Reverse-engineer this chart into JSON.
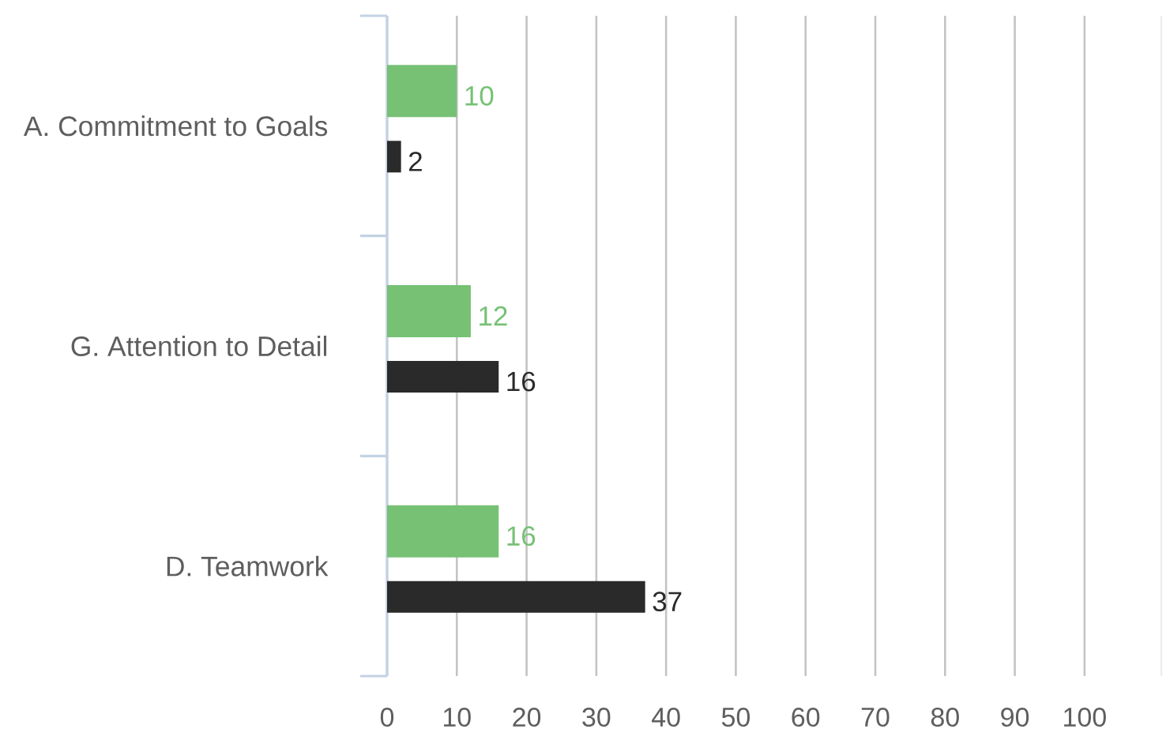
{
  "chart_data": {
    "type": "bar",
    "orientation": "horizontal",
    "categories": [
      "A. Commitment to Goals",
      "G. Attention to Detail",
      "D. Teamwork"
    ],
    "series": [
      {
        "color": "#76c174",
        "values": [
          10,
          12,
          16
        ]
      },
      {
        "color": "#2a2a2a",
        "values": [
          2,
          16,
          37
        ]
      }
    ],
    "xlim": [
      0,
      111
    ],
    "xticks": [
      0,
      10,
      20,
      30,
      40,
      50,
      60,
      70,
      80,
      90,
      100
    ],
    "grid": "x",
    "data_labels": true
  }
}
